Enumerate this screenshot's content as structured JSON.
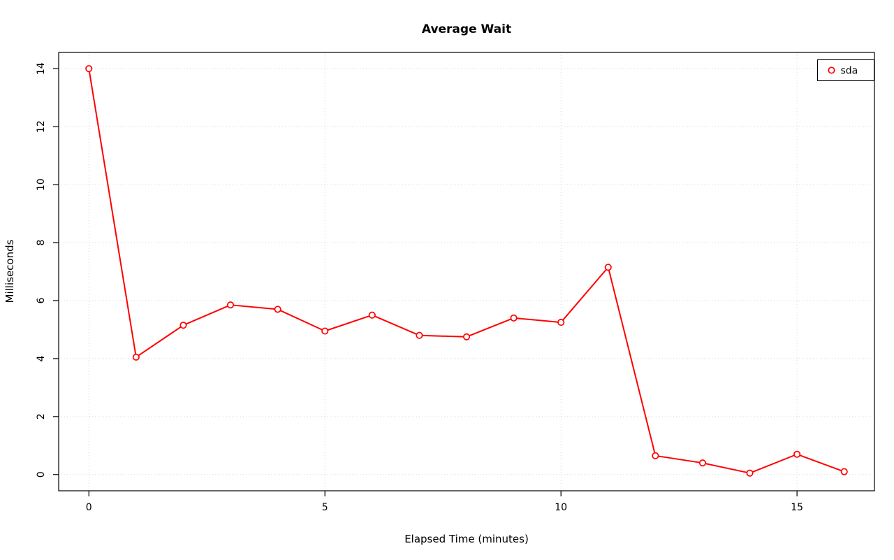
{
  "page": {
    "background": "#ffffff"
  },
  "chart_data": {
    "type": "line",
    "title": "Average Wait",
    "xlabel": "Elapsed Time (minutes)",
    "ylabel": "Milliseconds",
    "xlim": [
      0,
      16
    ],
    "ylim": [
      0,
      14
    ],
    "x_ticks": [
      0,
      5,
      10,
      15
    ],
    "y_ticks": [
      0,
      2,
      4,
      6,
      8,
      10,
      12,
      14
    ],
    "grid": true,
    "grid_color": "#d9d9d9",
    "frame_color": "#000000",
    "legend_position": "top-right",
    "series": [
      {
        "name": "sda",
        "color": "#ff0000",
        "marker": "open-circle",
        "x": [
          0,
          1,
          2,
          3,
          4,
          5,
          6,
          7,
          8,
          9,
          10,
          11,
          12,
          13,
          14,
          15,
          16
        ],
        "values": [
          14.0,
          4.05,
          5.15,
          5.85,
          5.7,
          4.95,
          5.5,
          4.8,
          4.75,
          5.4,
          5.25,
          7.15,
          0.65,
          0.4,
          0.05,
          0.7,
          0.1
        ]
      }
    ]
  }
}
